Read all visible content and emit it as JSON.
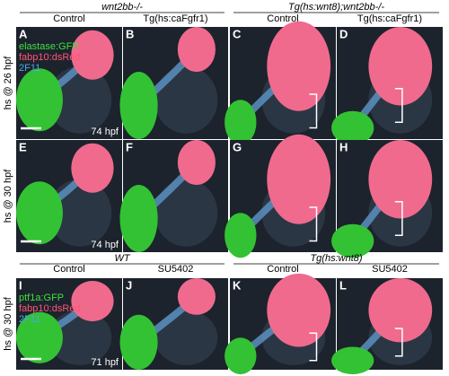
{
  "sections": [
    {
      "groups": [
        {
          "title": "wnt2bb-/-",
          "columns": [
            "Control",
            "Tg(hs:caFgfr1)"
          ]
        },
        {
          "title": "Tg(hs:wnt8);wnt2bb-/-",
          "columns": [
            "Control",
            "Tg(hs:caFgfr1)"
          ]
        }
      ],
      "rows": [
        {
          "label": "hs @ 26 hpf",
          "panels": [
            {
              "letter": "A",
              "legend": [
                "elastase:GFP",
                "fabp10:dsRed",
                "2F11"
              ],
              "stage": "74 hpf"
            },
            {
              "letter": "B"
            },
            {
              "letter": "C"
            },
            {
              "letter": "D"
            }
          ]
        },
        {
          "label": "hs @ 30 hpf",
          "panels": [
            {
              "letter": "E",
              "stage": "74 hpf"
            },
            {
              "letter": "F"
            },
            {
              "letter": "G"
            },
            {
              "letter": "H"
            }
          ]
        }
      ]
    },
    {
      "groups": [
        {
          "title": "WT",
          "columns": [
            "Control",
            "SU5402"
          ]
        },
        {
          "title": "Tg(hs:wnt8)",
          "columns": [
            "Control",
            "SU5402"
          ]
        }
      ],
      "rows": [
        {
          "label": "hs @ 30 hpf",
          "panels": [
            {
              "letter": "I",
              "legend": [
                "ptf1a:GFP",
                "fabp10:dsRed",
                "2F11"
              ],
              "stage": "71 hpf"
            },
            {
              "letter": "J"
            },
            {
              "letter": "K"
            },
            {
              "letter": "L"
            }
          ]
        }
      ]
    }
  ]
}
